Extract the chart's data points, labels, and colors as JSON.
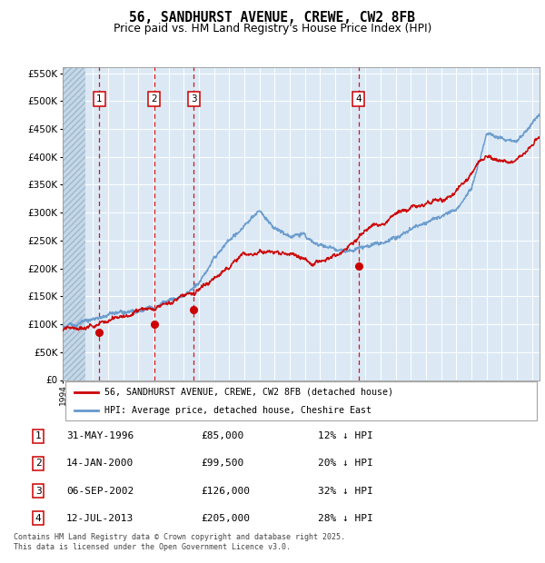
{
  "title": "56, SANDHURST AVENUE, CREWE, CW2 8FB",
  "subtitle": "Price paid vs. HM Land Registry's House Price Index (HPI)",
  "ylabel_max": 550000,
  "ylabel_step": 50000,
  "background_color": "#ffffff",
  "chart_bg": "#dce9f5",
  "sale_date_nums": [
    1996.417,
    2000.042,
    2002.667,
    2013.542
  ],
  "sale_prices": [
    85000,
    99500,
    126000,
    205000
  ],
  "sale_labels": [
    "1",
    "2",
    "3",
    "4"
  ],
  "legend_line1": "56, SANDHURST AVENUE, CREWE, CW2 8FB (detached house)",
  "legend_line2": "HPI: Average price, detached house, Cheshire East",
  "table_data": [
    [
      "1",
      "31-MAY-1996",
      "£85,000",
      "12% ↓ HPI"
    ],
    [
      "2",
      "14-JAN-2000",
      "£99,500",
      "20% ↓ HPI"
    ],
    [
      "3",
      "06-SEP-2002",
      "£126,000",
      "32% ↓ HPI"
    ],
    [
      "4",
      "12-JUL-2013",
      "£205,000",
      "28% ↓ HPI"
    ]
  ],
  "footer": "Contains HM Land Registry data © Crown copyright and database right 2025.\nThis data is licensed under the Open Government Licence v3.0.",
  "red_line_color": "#cc0000",
  "blue_line_color": "#6699cc",
  "x_start_year": 1994,
  "x_end_year": 2025
}
